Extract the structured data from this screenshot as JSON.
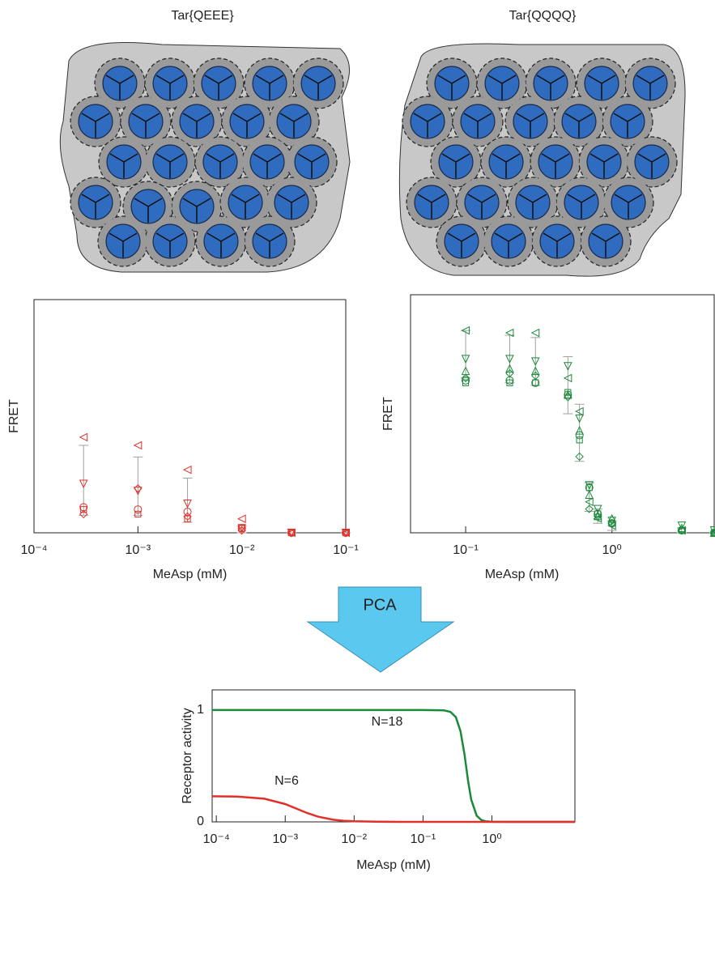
{
  "diagrams": [
    {
      "label": "Tar{QEEE}"
    },
    {
      "label": "Tar{QQQQ}"
    }
  ],
  "arrow_label": "PCA",
  "chart_data": [
    {
      "type": "scatter",
      "x_label": "MeAsp (mM)",
      "y_label": "FRET",
      "xscale": "log",
      "xlim": [
        0.0001,
        0.1
      ],
      "xticks": [
        {
          "value": 0.0001,
          "label": "10⁻⁴"
        },
        {
          "value": 0.001,
          "label": "10⁻³"
        },
        {
          "value": 0.01,
          "label": "10⁻²"
        },
        {
          "value": 0.1,
          "label": "10⁻¹"
        }
      ],
      "ylim": [
        0,
        1
      ],
      "x": [
        0.0003,
        0.001,
        0.003,
        0.01,
        0.03,
        0.1
      ],
      "series": [
        {
          "marker": "triangle-left",
          "color": "#e0302a",
          "values": [
            0.41,
            0.375,
            0.27,
            0.06,
            0,
            0
          ]
        },
        {
          "marker": "triangle-down",
          "color": "#e0302a",
          "values": [
            0.21,
            0.18,
            0.125,
            0.02,
            0,
            0
          ]
        },
        {
          "marker": "diamond",
          "color": "#e0302a",
          "values": [
            0.08,
            0.19,
            0.07,
            0.01,
            0,
            0
          ]
        },
        {
          "marker": "circle",
          "color": "#e0302a",
          "values": [
            0.11,
            0.1,
            0.09,
            0.02,
            0,
            0
          ]
        },
        {
          "marker": "square",
          "color": "#e0302a",
          "values": [
            0.1,
            0.08,
            0.06,
            0.02,
            0,
            0
          ]
        }
      ],
      "mean": [
        0.225,
        0.2,
        0.14,
        0.015,
        0,
        0
      ],
      "error": [
        0.15,
        0.125,
        0.095,
        0.015,
        0,
        0
      ],
      "error_color": "#a0a0a0"
    },
    {
      "type": "scatter",
      "x_label": "MeAsp (mM)",
      "y_label": "FRET",
      "xscale": "log",
      "xlim": [
        0.042,
        5
      ],
      "xticks": [
        {
          "value": 0.1,
          "label": "10⁻¹"
        },
        {
          "value": 1,
          "label": "10⁰"
        }
      ],
      "ylim": [
        0,
        1
      ],
      "x": [
        0.1,
        0.2,
        0.3,
        0.5,
        0.6,
        0.7,
        0.8,
        1,
        3,
        5
      ],
      "series": [
        {
          "marker": "triangle-left",
          "color": "#1a8a3a",
          "values": [
            0.85,
            0.84,
            0.84,
            0.65,
            0.51,
            0.13,
            0.06,
            0.03,
            0.01,
            0
          ]
        },
        {
          "marker": "triangle-down",
          "color": "#1a8a3a",
          "values": [
            0.73,
            0.73,
            0.72,
            0.7,
            0.48,
            0.2,
            0.1,
            0.05,
            0.03,
            0.01
          ]
        },
        {
          "marker": "triangle-up",
          "color": "#1a8a3a",
          "values": [
            0.68,
            0.69,
            0.68,
            0.58,
            0.43,
            0.16,
            0.07,
            0.06,
            0.02,
            0
          ]
        },
        {
          "marker": "diamond",
          "color": "#1a8a3a",
          "values": [
            0.65,
            0.67,
            0.66,
            0.57,
            0.32,
            0.1,
            0.07,
            0.04,
            0.01,
            0
          ]
        },
        {
          "marker": "circle",
          "color": "#1a8a3a",
          "values": [
            0.64,
            0.64,
            0.63,
            0.58,
            0.41,
            0.19,
            0.08,
            0.04,
            0.01,
            0
          ]
        },
        {
          "marker": "square",
          "color": "#1a8a3a",
          "values": [
            0.63,
            0.63,
            0.63,
            0.59,
            0.39,
            0.19,
            0.08,
            0.04,
            0.01,
            0
          ]
        }
      ],
      "mean": [
        0.75,
        0.73,
        0.72,
        0.62,
        0.42,
        0.15,
        0.07,
        0.03,
        0.01,
        0
      ],
      "error": [
        0.1,
        0.1,
        0.1,
        0.12,
        0.12,
        0.06,
        0.03,
        0.02,
        0.01,
        0
      ],
      "error_color": "#a0a0a0"
    },
    {
      "type": "line",
      "x_label": "MeAsp (mM)",
      "y_label": "Receptor activity",
      "xscale": "log",
      "xlim": [
        8.7e-05,
        16
      ],
      "xticks": [
        {
          "value": 0.0001,
          "label": "10⁻⁴"
        },
        {
          "value": 0.001,
          "label": "10⁻³"
        },
        {
          "value": 0.01,
          "label": "10⁻²"
        },
        {
          "value": 0.1,
          "label": "10⁻¹"
        },
        {
          "value": 1,
          "label": "10⁰"
        }
      ],
      "ylim": [
        0,
        1.18
      ],
      "yticks": [
        0,
        1
      ],
      "series": [
        {
          "color": "#1a8a3a",
          "x": [
            8.7e-05,
            0.01,
            0.1,
            0.2,
            0.25,
            0.3,
            0.35,
            0.4,
            0.45,
            0.5,
            0.6,
            0.7,
            0.8,
            1,
            1.5,
            16
          ],
          "values": [
            1,
            1,
            1,
            0.997,
            0.984,
            0.936,
            0.81,
            0.6,
            0.37,
            0.2,
            0.055,
            0.017,
            0.006,
            0.001,
            0,
            0
          ]
        },
        {
          "color": "#e0302a",
          "x": [
            8.7e-05,
            0.0002,
            0.0005,
            0.001,
            0.0015,
            0.002,
            0.003,
            0.005,
            0.007,
            0.01,
            0.02,
            0.05,
            16
          ],
          "values": [
            0.229,
            0.226,
            0.207,
            0.159,
            0.115,
            0.083,
            0.046,
            0.019,
            0.01,
            0.005,
            0.0013,
            0,
            0
          ]
        }
      ],
      "annotations": [
        "N=18",
        "N=6"
      ]
    }
  ]
}
